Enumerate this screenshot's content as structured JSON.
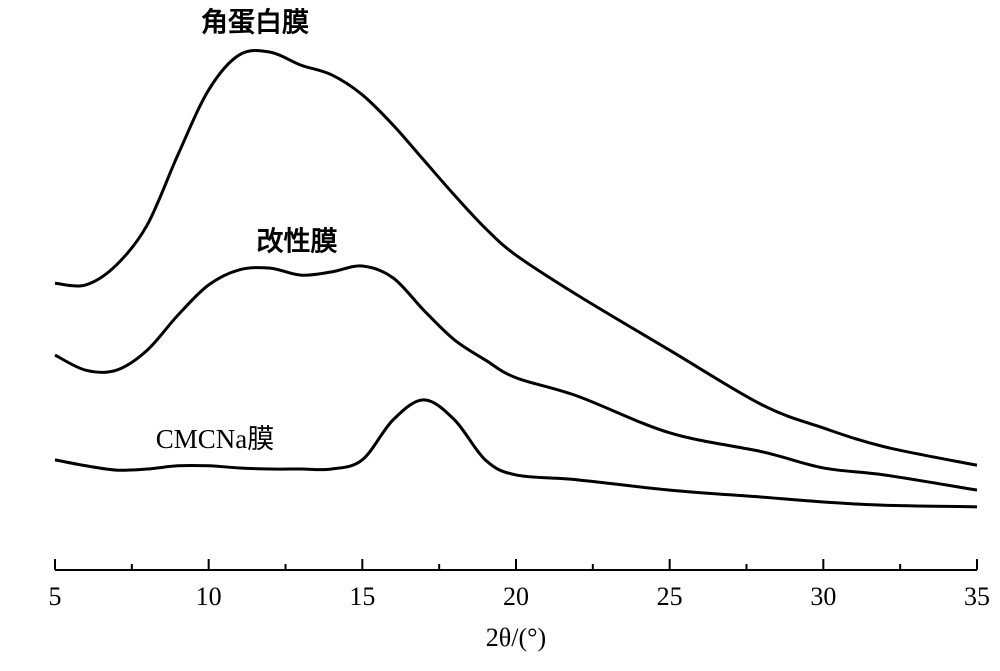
{
  "chart_data": {
    "type": "line",
    "x_label": "2θ/(°)",
    "x": [
      5,
      6,
      7,
      8,
      9,
      10,
      11,
      12,
      13,
      14,
      15,
      16,
      17,
      18,
      19,
      20,
      22,
      25,
      28,
      30,
      32,
      35
    ],
    "series": [
      {
        "name": "角蛋白膜",
        "color": "#000000",
        "values": [
          53.1,
          52.8,
          56.5,
          63.9,
          76.9,
          88.9,
          95.4,
          95.9,
          93.5,
          91.7,
          88.0,
          82.4,
          75.9,
          69.4,
          63.3,
          58.3,
          50.9,
          40.7,
          30.6,
          26.3,
          22.8,
          19.4
        ]
      },
      {
        "name": "改性膜",
        "color": "#000000",
        "values": [
          39.8,
          37.0,
          37.0,
          40.7,
          47.2,
          52.8,
          55.6,
          55.9,
          54.6,
          55.2,
          56.3,
          54.1,
          48.1,
          42.6,
          38.9,
          35.6,
          32.2,
          25.4,
          21.9,
          18.9,
          17.6,
          14.8
        ]
      },
      {
        "name": "CMCNa膜",
        "color": "#000000",
        "values": [
          20.4,
          19.3,
          18.5,
          18.7,
          19.3,
          19.3,
          18.9,
          18.7,
          18.7,
          18.7,
          20.4,
          27.8,
          31.5,
          27.8,
          20.4,
          17.6,
          16.7,
          14.8,
          13.5,
          12.6,
          12.0,
          11.7
        ]
      }
    ],
    "xlim": [
      5,
      35
    ],
    "xticks": [
      5,
      10,
      15,
      20,
      25,
      30,
      35
    ],
    "xminorticks": [
      7.5,
      12.5,
      17.5,
      22.5,
      27.5,
      32.5
    ],
    "ylim": [
      0,
      100
    ],
    "grid": false
  }
}
